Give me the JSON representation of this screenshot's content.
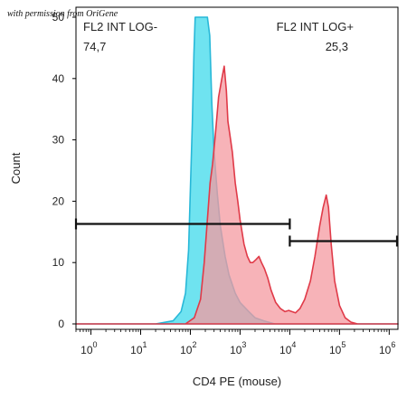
{
  "credit": "with permission from OriGene",
  "chart_data": {
    "type": "area",
    "xlabel": "CD4 PE (mouse)",
    "ylabel": "Count",
    "x_scale": "log",
    "xlim": [
      0.5,
      1500000
    ],
    "ylim": [
      0,
      50
    ],
    "grid": false,
    "x_tick_labels": [
      {
        "base": "10",
        "exp": "0",
        "value": 1
      },
      {
        "base": "10",
        "exp": "1",
        "value": 10
      },
      {
        "base": "10",
        "exp": "2",
        "value": 100
      },
      {
        "base": "10",
        "exp": "3",
        "value": 1000
      },
      {
        "base": "10",
        "exp": "4",
        "value": 10000
      },
      {
        "base": "10",
        "exp": "5",
        "value": 100000
      },
      {
        "base": "10",
        "exp": "6",
        "value": 1000000
      }
    ],
    "y_ticks": [
      0,
      10,
      20,
      30,
      40,
      50
    ],
    "series": [
      {
        "color": "#6fe3f0",
        "stroke": "#28b8d8",
        "points": [
          [
            0.5,
            0
          ],
          [
            20,
            0
          ],
          [
            45,
            0.5
          ],
          [
            65,
            2
          ],
          [
            80,
            5
          ],
          [
            92,
            12
          ],
          [
            100,
            22
          ],
          [
            110,
            33
          ],
          [
            118,
            44
          ],
          [
            125,
            50
          ],
          [
            140,
            50
          ],
          [
            180,
            50
          ],
          [
            220,
            50
          ],
          [
            245,
            47
          ],
          [
            270,
            36
          ],
          [
            300,
            28
          ],
          [
            350,
            21
          ],
          [
            400,
            16
          ],
          [
            500,
            11
          ],
          [
            600,
            8
          ],
          [
            800,
            5
          ],
          [
            1000,
            3.5
          ],
          [
            1500,
            2
          ],
          [
            2000,
            1
          ],
          [
            3000,
            0.5
          ],
          [
            5000,
            0
          ],
          [
            1500000,
            0
          ]
        ]
      },
      {
        "color": "#f49aa0",
        "stroke": "#e03a48",
        "points": [
          [
            0.5,
            0
          ],
          [
            80,
            0
          ],
          [
            120,
            1
          ],
          [
            160,
            4
          ],
          [
            190,
            10
          ],
          [
            220,
            17
          ],
          [
            250,
            23
          ],
          [
            280,
            26
          ],
          [
            320,
            31
          ],
          [
            370,
            37
          ],
          [
            430,
            40
          ],
          [
            480,
            42
          ],
          [
            530,
            38
          ],
          [
            570,
            33
          ],
          [
            620,
            31
          ],
          [
            700,
            28
          ],
          [
            800,
            23
          ],
          [
            900,
            20
          ],
          [
            1000,
            17
          ],
          [
            1200,
            13
          ],
          [
            1400,
            11
          ],
          [
            1600,
            10
          ],
          [
            1800,
            10
          ],
          [
            2100,
            10.5
          ],
          [
            2400,
            11
          ],
          [
            2700,
            10
          ],
          [
            3100,
            9
          ],
          [
            3600,
            7.5
          ],
          [
            4200,
            5.5
          ],
          [
            5200,
            3.5
          ],
          [
            6500,
            2.5
          ],
          [
            8000,
            2
          ],
          [
            9500,
            2.2
          ],
          [
            11000,
            2
          ],
          [
            13000,
            1.8
          ],
          [
            16000,
            2.5
          ],
          [
            20000,
            4
          ],
          [
            26000,
            7
          ],
          [
            32000,
            11
          ],
          [
            40000,
            16
          ],
          [
            47000,
            19
          ],
          [
            54000,
            21
          ],
          [
            60000,
            19
          ],
          [
            68000,
            13
          ],
          [
            80000,
            7
          ],
          [
            100000,
            3
          ],
          [
            130000,
            1
          ],
          [
            170000,
            0.3
          ],
          [
            230000,
            0
          ],
          [
            1500000,
            0
          ]
        ]
      }
    ],
    "gates": [
      {
        "name": "FL2 INT LOG-",
        "percent": "74,7",
        "x_range": [
          0.5,
          10000
        ],
        "y": 16.3
      },
      {
        "name": "FL2 INT LOG+",
        "percent": "25,3",
        "x_range": [
          10000,
          1500000
        ],
        "y": 13.5
      }
    ],
    "colors": {
      "axis": "#000000",
      "gate_line": "#111111"
    }
  }
}
